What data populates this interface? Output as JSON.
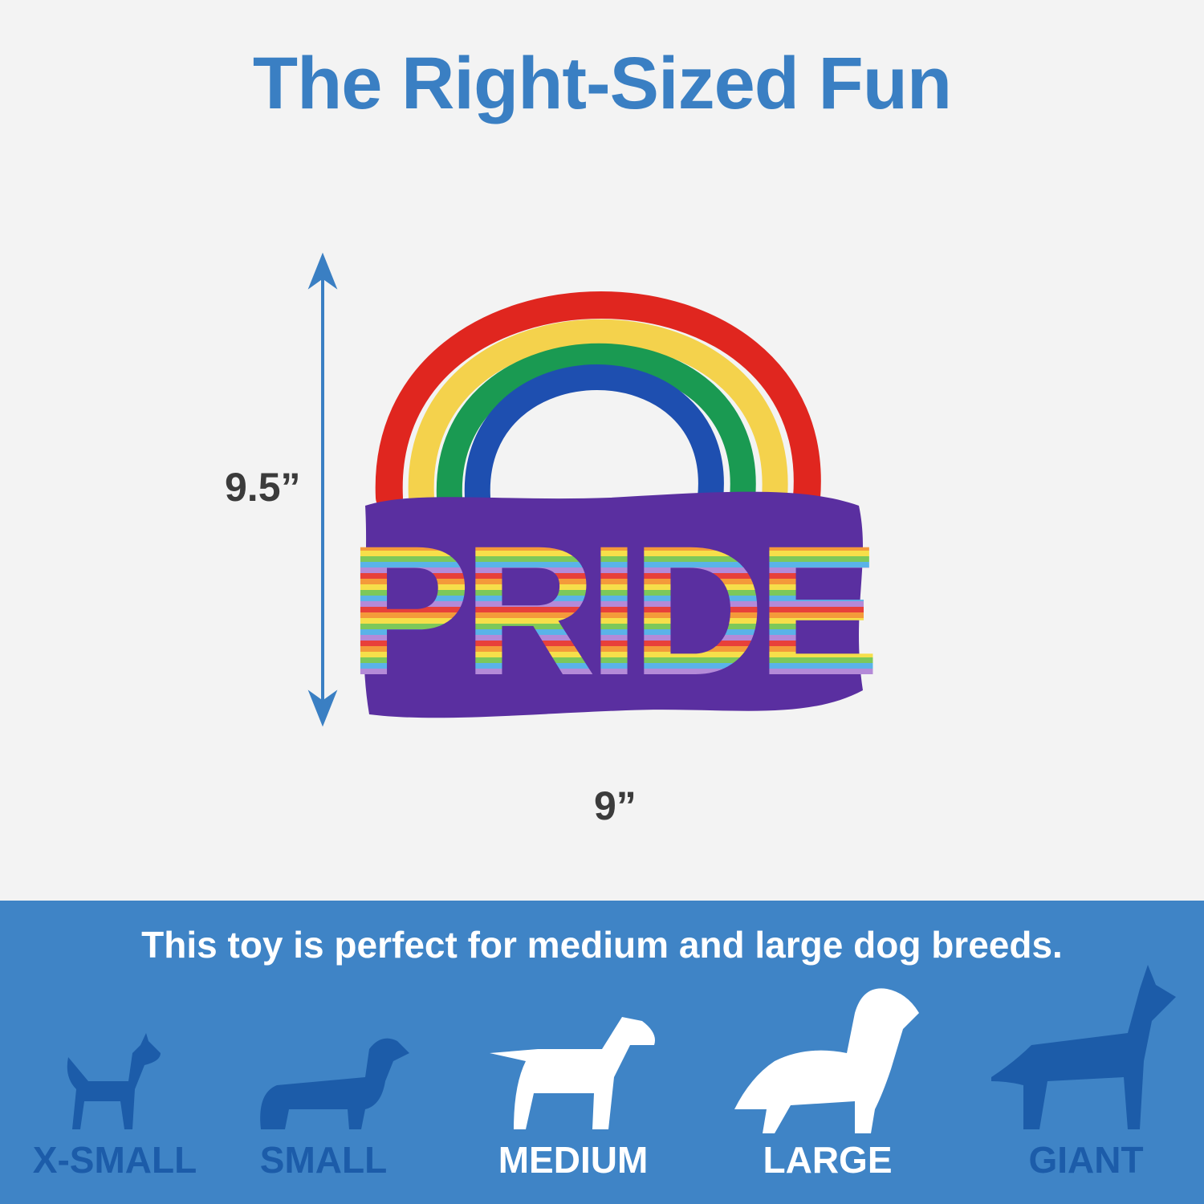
{
  "title": "The Right-Sized Fun",
  "product": {
    "label_text": "PRIDE",
    "height": "9.5”",
    "width": "9”"
  },
  "banner": {
    "tagline": "This toy is perfect for medium and large dog breeds.",
    "sizes": [
      {
        "label": "X-SMALL",
        "recommended": false
      },
      {
        "label": "SMALL",
        "recommended": false
      },
      {
        "label": "MEDIUM",
        "recommended": true
      },
      {
        "label": "LARGE",
        "recommended": true
      },
      {
        "label": "GIANT",
        "recommended": false
      }
    ]
  },
  "colors": {
    "accent": "#3a7fc3",
    "banner": "#3f84c6",
    "inactive_dog": "#1c5ca9",
    "active_dog": "#ffffff",
    "toy_body": "#5a2fa0"
  }
}
